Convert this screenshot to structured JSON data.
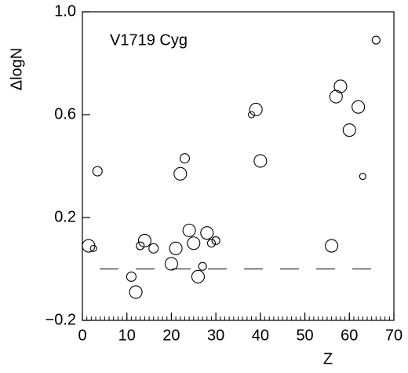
{
  "chart_data": {
    "type": "scatter",
    "annotation": "V1719 Cyg",
    "x_label": "Z",
    "y_label": "ΔlogN",
    "xlim": [
      0,
      70
    ],
    "xticks": [
      0,
      10,
      20,
      30,
      40,
      50,
      60,
      70
    ],
    "ylim": [
      -0.2,
      1.0
    ],
    "yticks": [
      {
        "value": -0.2,
        "label": "−0.2"
      },
      0.2,
      0.6,
      {
        "value": 1.0,
        "label": "1.0"
      }
    ],
    "reference_y": 0,
    "color": "#000000",
    "x": [
      1.4,
      2.5,
      3.4,
      11,
      12,
      13,
      14,
      16,
      20,
      21,
      22,
      23,
      24,
      25,
      26,
      27,
      28,
      29,
      30,
      38,
      39,
      40,
      56,
      57,
      58,
      60,
      62,
      63,
      66
    ],
    "values": [
      0.09,
      0.08,
      0.38,
      -0.03,
      -0.09,
      0.09,
      0.11,
      0.08,
      0.02,
      0.08,
      0.37,
      0.43,
      0.15,
      0.1,
      -0.03,
      0.01,
      0.14,
      0.1,
      0.11,
      0.6,
      0.62,
      0.42,
      0.09,
      0.67,
      0.71,
      0.54,
      0.63,
      0.36,
      0.89
    ],
    "sizes": [
      8,
      4,
      6,
      6,
      8,
      5,
      8,
      6,
      8,
      8,
      8,
      6,
      8,
      8,
      8,
      5,
      8,
      5,
      5,
      4,
      8,
      8,
      8,
      8,
      8,
      8,
      8,
      4,
      5
    ]
  }
}
